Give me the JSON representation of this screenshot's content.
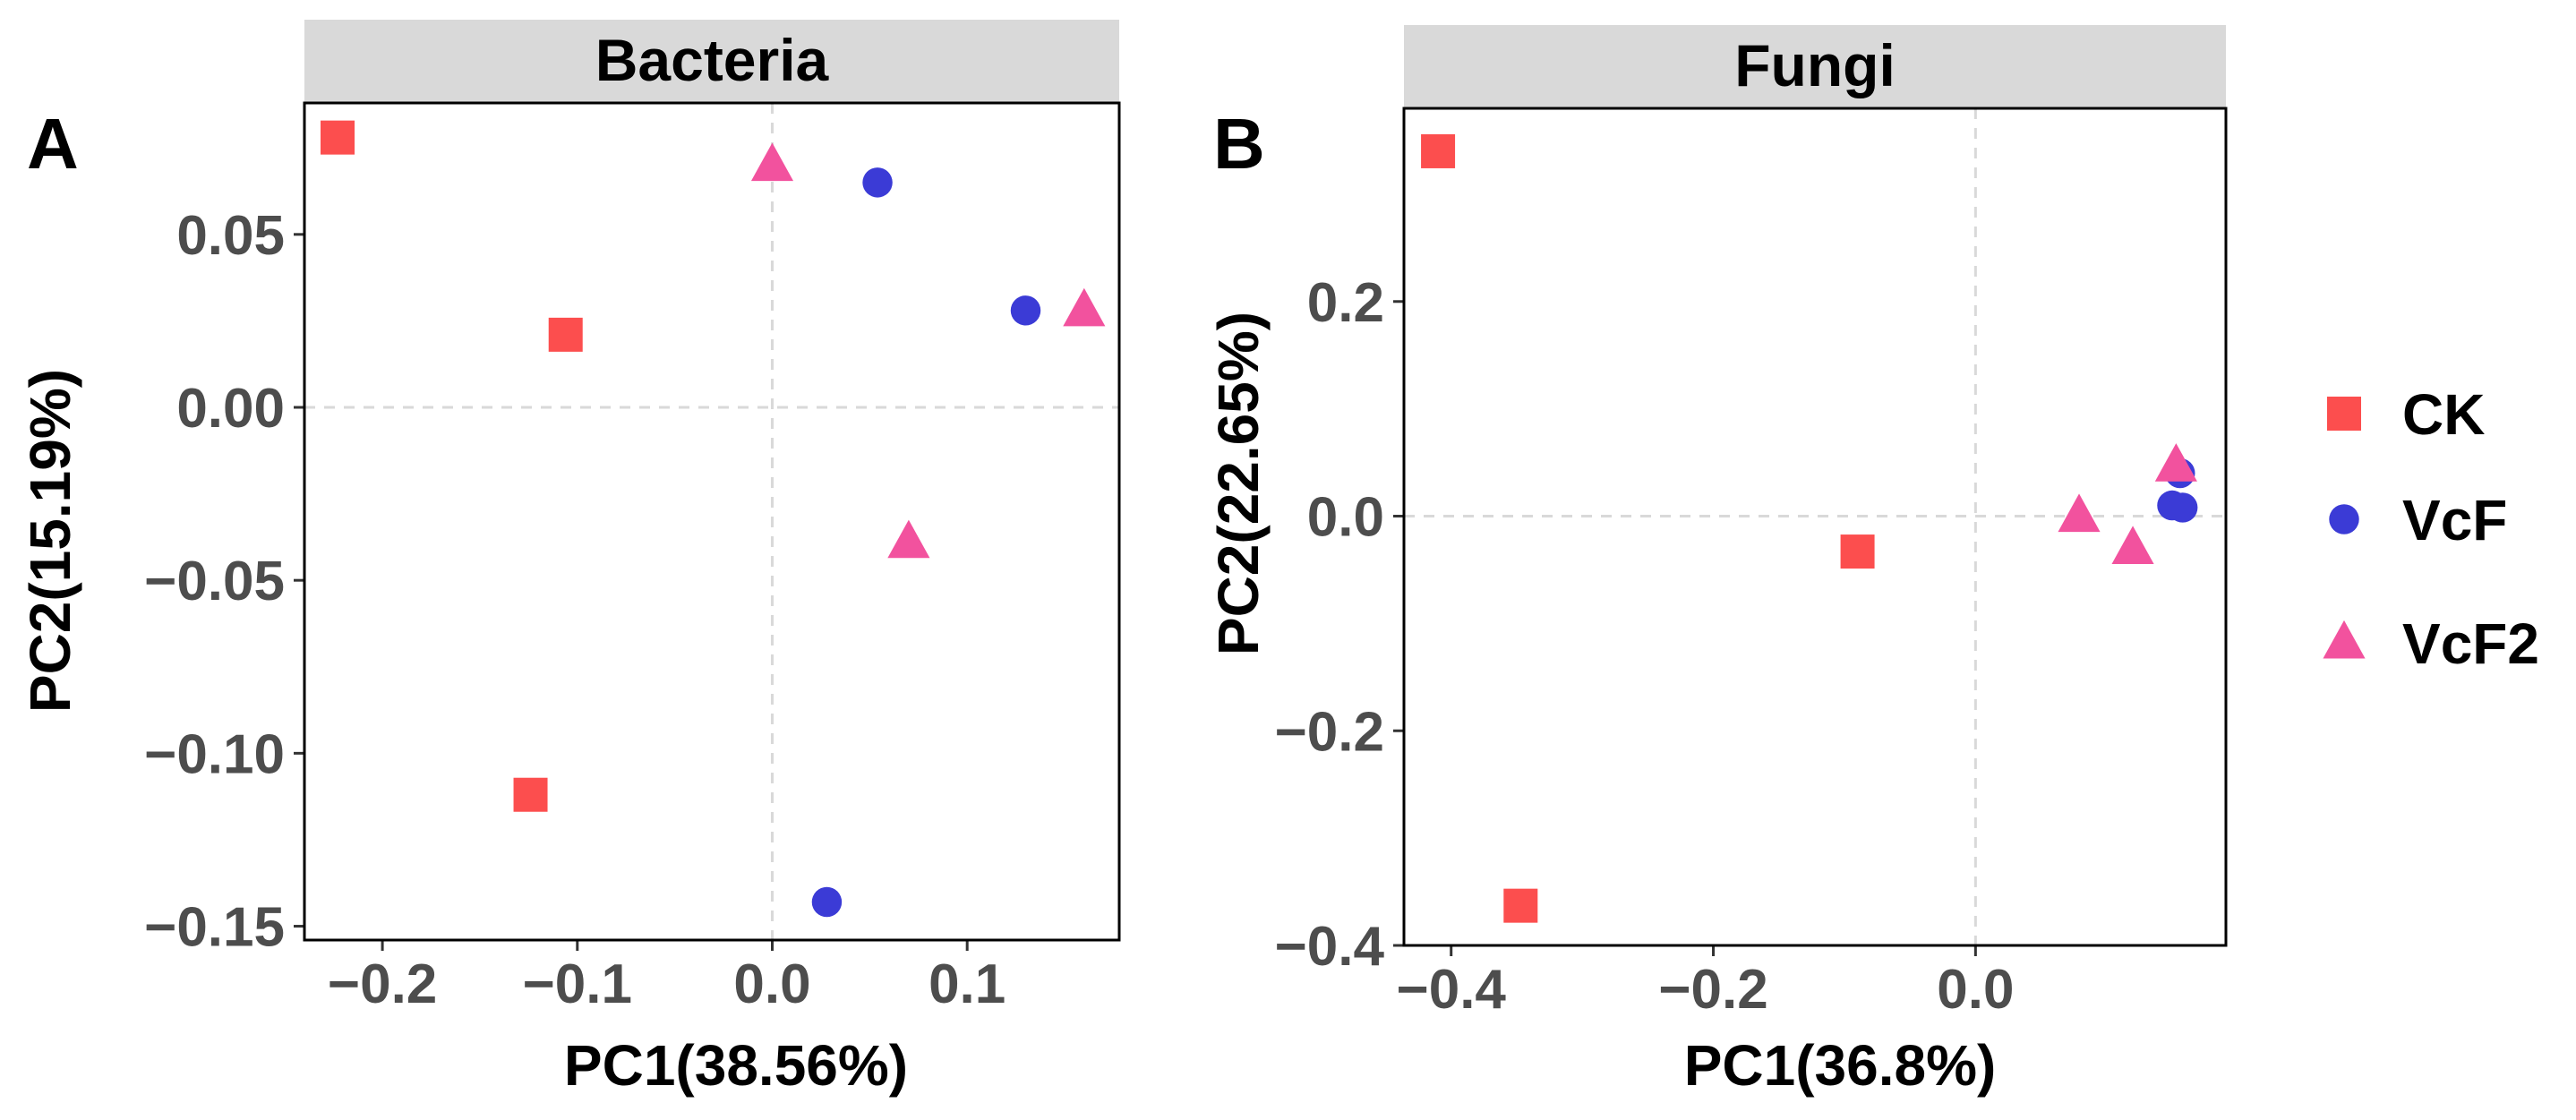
{
  "chart_data": [
    {
      "type": "scatter",
      "panel_label": "A",
      "strip_title": "Bacteria",
      "xlabel": "PC1(38.56%)",
      "ylabel": "PC2(15.19%)",
      "xlim": [
        -0.24,
        0.178
      ],
      "ylim": [
        -0.154,
        0.088
      ],
      "xticks": [
        -0.2,
        -0.1,
        0.0,
        0.1
      ],
      "xtick_labels": [
        "−0.2",
        "−0.1",
        "0.0",
        "0.1"
      ],
      "yticks": [
        0.05,
        0.0,
        -0.05,
        -0.1,
        -0.15
      ],
      "ytick_labels": [
        "0.05",
        "0.00",
        "−0.05",
        "−0.10",
        "−0.15"
      ],
      "zero_lines": true,
      "series": [
        {
          "name": "CK",
          "points": [
            [
              -0.223,
              0.078
            ],
            [
              -0.106,
              0.021
            ],
            [
              -0.124,
              -0.112
            ]
          ]
        },
        {
          "name": "VcF",
          "points": [
            [
              0.054,
              0.065
            ],
            [
              0.13,
              0.028
            ],
            [
              0.028,
              -0.143
            ]
          ]
        },
        {
          "name": "VcF2",
          "points": [
            [
              0.0,
              0.07
            ],
            [
              0.16,
              0.028
            ],
            [
              0.07,
              -0.039
            ]
          ]
        }
      ]
    },
    {
      "type": "scatter",
      "panel_label": "B",
      "strip_title": "Fungi",
      "xlabel": "PC1(36.8%)",
      "ylabel": "PC2(22.65%)",
      "xlim": [
        -0.436,
        0.191
      ],
      "ylim": [
        -0.4,
        0.38
      ],
      "xticks": [
        -0.4,
        -0.2,
        0.0
      ],
      "xtick_labels": [
        "−0.4",
        "−0.2",
        "0.0"
      ],
      "yticks": [
        0.2,
        0.0,
        -0.2,
        -0.4
      ],
      "ytick_labels": [
        "0.2",
        "0.0",
        "−0.2",
        "−0.4"
      ],
      "zero_lines": true,
      "series": [
        {
          "name": "CK",
          "points": [
            [
              -0.41,
              0.34
            ],
            [
              -0.09,
              -0.033
            ],
            [
              -0.347,
              -0.363
            ]
          ]
        },
        {
          "name": "VcF",
          "points": [
            [
              0.156,
              0.04
            ],
            [
              0.15,
              0.01
            ],
            [
              0.158,
              0.008
            ]
          ]
        },
        {
          "name": "VcF2",
          "points": [
            [
              0.079,
              0.0
            ],
            [
              0.12,
              -0.03
            ],
            [
              0.153,
              0.047
            ]
          ]
        }
      ]
    }
  ],
  "legend": {
    "placement": "right",
    "items": [
      {
        "label": "CK",
        "shape": "square",
        "color": "#fc4e4e"
      },
      {
        "label": "VcF",
        "shape": "circle",
        "color": "#3b3bd6"
      },
      {
        "label": "VcF2",
        "shape": "triangle",
        "color": "#f2529e"
      }
    ]
  }
}
